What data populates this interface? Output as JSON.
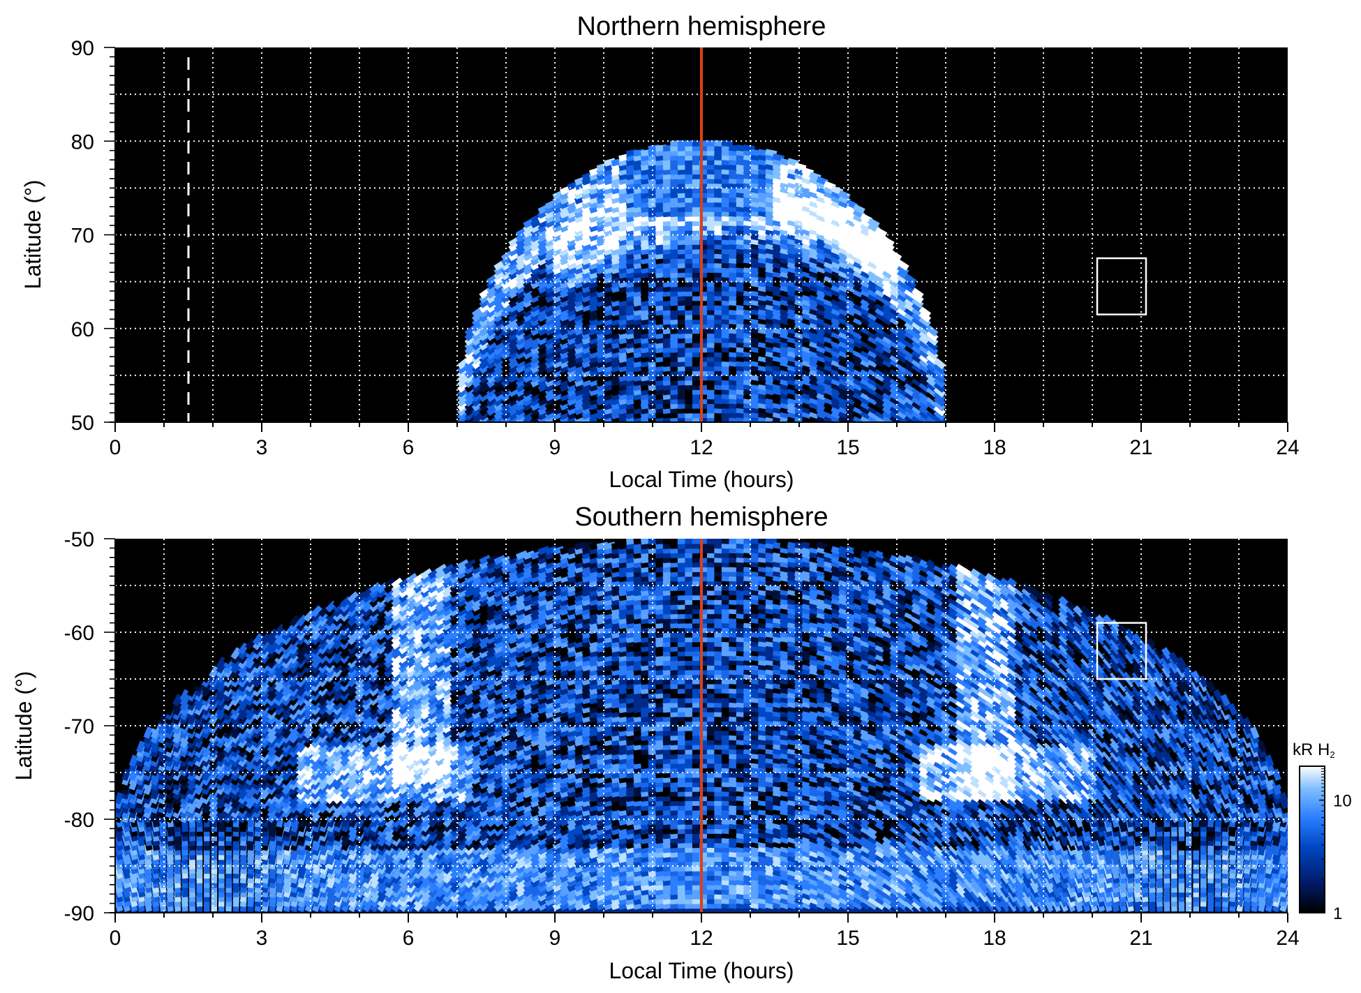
{
  "chart_data": [
    {
      "type": "heatmap",
      "title": "Northern hemisphere",
      "xlabel": "Local Time (hours)",
      "ylabel": "Latitude (°)",
      "xlim": [
        0,
        24
      ],
      "ylim": [
        50,
        90
      ],
      "x_ticks": [
        0,
        3,
        6,
        9,
        12,
        15,
        18,
        21,
        24
      ],
      "x_tick_labels": [
        "0",
        "3",
        "6",
        "9",
        "12",
        "15",
        "18",
        "21",
        "24"
      ],
      "y_ticks": [
        50,
        60,
        70,
        80,
        90
      ],
      "y_tick_labels": [
        "50",
        "60",
        "70",
        "80",
        "90"
      ],
      "grid": true,
      "coverage": {
        "lt_range": [
          7,
          17
        ],
        "max_lat": 80
      },
      "auroral_oval": {
        "lat_at_noon": 70,
        "lat_at_flanks": 62,
        "lt_range": [
          9,
          16
        ]
      },
      "noon_line": {
        "x": 12,
        "color": "#d9421a"
      },
      "dashed_line": {
        "x": 1.5,
        "color": "#ffffff"
      },
      "box": {
        "x": [
          20.1,
          21.1
        ],
        "y": [
          61.5,
          67.5
        ],
        "color": "#ffffff"
      }
    },
    {
      "type": "heatmap",
      "title": "Southern hemisphere",
      "xlabel": "Local Time (hours)",
      "ylabel": "Latitude (°)",
      "xlim": [
        0,
        24
      ],
      "ylim": [
        -90,
        -50
      ],
      "x_ticks": [
        0,
        3,
        6,
        9,
        12,
        15,
        18,
        21,
        24
      ],
      "x_tick_labels": [
        "0",
        "3",
        "6",
        "9",
        "12",
        "15",
        "18",
        "21",
        "24"
      ],
      "y_ticks": [
        -90,
        -80,
        -70,
        -60,
        -50
      ],
      "y_tick_labels": [
        "-90",
        "-80",
        "-70",
        "-60",
        "-50"
      ],
      "grid": true,
      "coverage": {
        "lt_range": [
          0,
          24
        ],
        "lat_at_noon": -50,
        "lat_at_edges": -81
      },
      "auroral_bands": [
        {
          "lt": 6.3,
          "lat_range": [
            -76,
            -50
          ]
        },
        {
          "lt": 17.8,
          "lat_range": [
            -78,
            -50
          ]
        }
      ],
      "noon_line": {
        "x": 12,
        "color": "#d9421a"
      },
      "box": {
        "x": [
          20.1,
          21.1
        ],
        "y": [
          -65,
          -59
        ],
        "color": "#ffffff"
      }
    }
  ],
  "colorbar": {
    "label": "kR H",
    "label_subscript": "2",
    "scale": "log",
    "range": [
      1,
      20
    ],
    "tick_labels": [
      "1",
      "10"
    ],
    "tick_values": [
      1,
      10
    ],
    "colors": [
      "#000000",
      "#001a66",
      "#0047c2",
      "#2b7fff",
      "#80bfff",
      "#ffffff"
    ]
  }
}
